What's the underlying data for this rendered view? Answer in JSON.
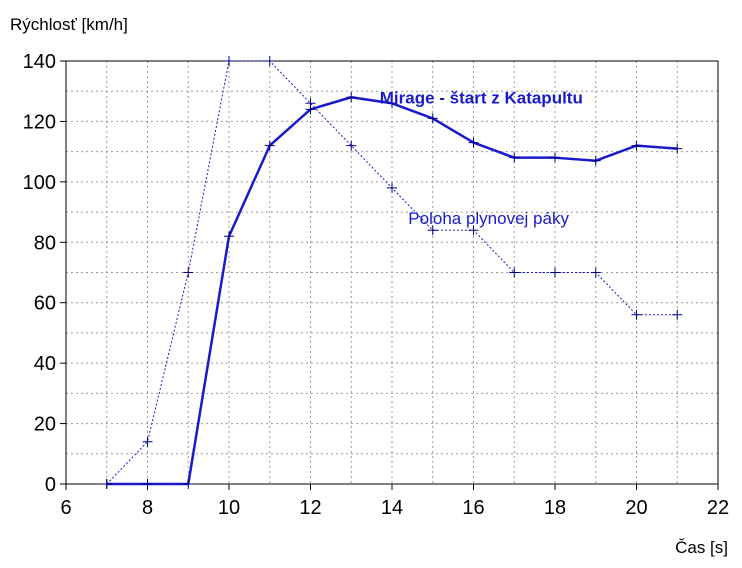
{
  "chart_data": {
    "type": "line",
    "xlabel": "Čas [s]",
    "ylabel": "Rýchlosť [km/h]",
    "xlim": [
      6,
      22
    ],
    "ylim": [
      0,
      140
    ],
    "x_ticks": [
      6,
      8,
      10,
      12,
      14,
      16,
      18,
      20,
      22
    ],
    "y_ticks": [
      0,
      20,
      40,
      60,
      80,
      100,
      120,
      140
    ],
    "grid": true,
    "series": [
      {
        "name": "Mirage - štart z Katapultu",
        "style": "solid-thick",
        "color": "#1a1acc",
        "x": [
          7,
          8,
          9,
          10,
          11,
          12,
          13,
          14,
          15,
          16,
          17,
          18,
          19,
          20,
          21
        ],
        "y": [
          0,
          0,
          0,
          82,
          112,
          124,
          128,
          126,
          121,
          113,
          108,
          108,
          107,
          112,
          111
        ]
      },
      {
        "name": "Poloha plynovej páky",
        "style": "dotted-thin",
        "color": "#1a1acc",
        "x": [
          7,
          8,
          9,
          10,
          11,
          12,
          13,
          14,
          15,
          16,
          17,
          18,
          19,
          20,
          21
        ],
        "y": [
          0,
          14,
          70,
          140,
          140,
          126,
          112,
          98,
          84,
          84,
          70,
          70,
          70,
          56,
          56
        ]
      }
    ],
    "annotations": [
      {
        "text": "Mirage - štart z Katapultu",
        "at_x": 13.7,
        "at_y": 124,
        "bold": true
      },
      {
        "text": "Poloha plynovej páky",
        "at_x": 14.4,
        "at_y": 84,
        "bold": false
      }
    ]
  }
}
